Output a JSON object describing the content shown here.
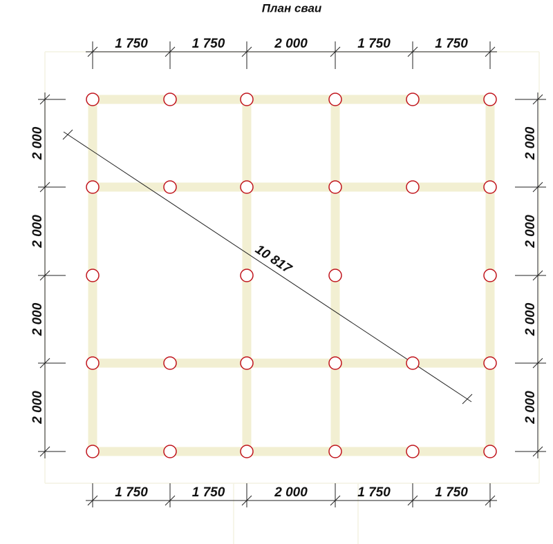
{
  "title": "План сваи",
  "top_dimensions": [
    "1 750",
    "1 750",
    "2 000",
    "1 750",
    "1 750"
  ],
  "bottom_dimensions": [
    "1 750",
    "1 750",
    "2 000",
    "1 750",
    "1 750"
  ],
  "left_dimensions": [
    "2 000",
    "2 000",
    "2 000",
    "2 000"
  ],
  "right_dimensions": [
    "2 000",
    "2 000",
    "2 000",
    "2 000"
  ],
  "diagonal": "10 817"
}
